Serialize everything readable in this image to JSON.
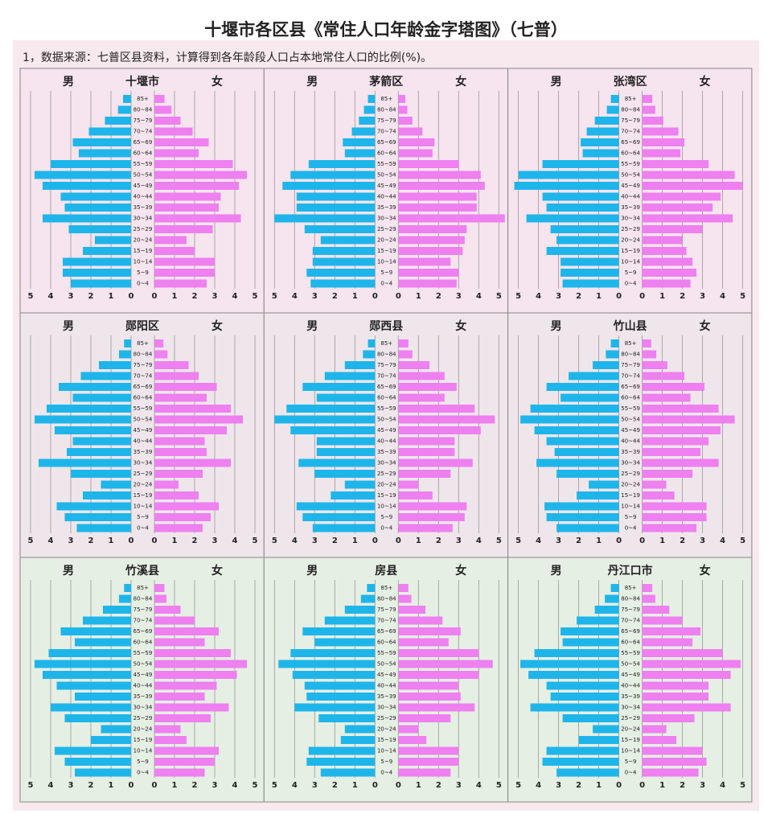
{
  "title": "十堰市各区县《常住人口年龄金字塔图》（七普）",
  "subtitle": "1，数据来源：七普区县资料，计算得到各年龄段人口占本地常住人口的比例(%)。",
  "chart_data": [
    {
      "type": "pyramid",
      "title": "十堰市",
      "categories": [
        "85+",
        "80~84",
        "75~79",
        "70~74",
        "65~69",
        "60~64",
        "55~59",
        "50~54",
        "45~49",
        "40~44",
        "35~39",
        "30~34",
        "25~29",
        "20~24",
        "15~19",
        "10~14",
        "5~9",
        "0~4"
      ],
      "series": [
        {
          "name": "男",
          "color": "#1eb6ea",
          "values": [
            0.4,
            0.65,
            1.3,
            2.1,
            2.9,
            2.6,
            4.0,
            4.8,
            4.4,
            3.5,
            3.3,
            4.4,
            3.1,
            1.8,
            2.4,
            3.4,
            3.4,
            3.0
          ]
        },
        {
          "name": "女",
          "color": "#ee80f0",
          "values": [
            0.5,
            0.85,
            1.3,
            1.9,
            2.7,
            2.2,
            3.9,
            4.6,
            4.2,
            3.3,
            3.2,
            4.3,
            2.9,
            1.6,
            2.0,
            3.0,
            3.0,
            2.6
          ]
        }
      ],
      "xlim": [
        0,
        5
      ],
      "xticks": [
        0,
        1,
        2,
        3,
        4,
        5
      ],
      "grid": true
    },
    {
      "type": "pyramid",
      "title": "茅箭区",
      "categories": [
        "85+",
        "80~84",
        "75~79",
        "70~74",
        "65~69",
        "60~64",
        "55~59",
        "50~54",
        "45~49",
        "40~44",
        "35~39",
        "30~34",
        "25~29",
        "20~24",
        "15~19",
        "10~14",
        "5~9",
        "0~4"
      ],
      "series": [
        {
          "name": "男",
          "color": "#1eb6ea",
          "values": [
            0.35,
            0.55,
            0.8,
            1.15,
            1.6,
            1.5,
            3.3,
            4.2,
            4.6,
            3.9,
            3.9,
            5.0,
            3.5,
            2.7,
            3.1,
            3.1,
            3.4,
            3.2
          ]
        },
        {
          "name": "女",
          "color": "#ee80f0",
          "values": [
            0.35,
            0.45,
            0.7,
            1.2,
            1.8,
            1.7,
            3.0,
            4.1,
            4.3,
            3.9,
            3.9,
            5.3,
            3.4,
            3.3,
            3.2,
            2.6,
            3.0,
            2.9
          ]
        }
      ],
      "xlim": [
        0,
        5
      ],
      "xticks": [
        0,
        1,
        2,
        3,
        4,
        5
      ],
      "grid": true
    },
    {
      "type": "pyramid",
      "title": "张湾区",
      "categories": [
        "85+",
        "80~84",
        "75~79",
        "70~74",
        "65~69",
        "60~64",
        "55~59",
        "50~54",
        "45~49",
        "40~44",
        "35~39",
        "30~34",
        "25~29",
        "20~24",
        "15~19",
        "10~14",
        "5~9",
        "0~4"
      ],
      "series": [
        {
          "name": "男",
          "color": "#1eb6ea",
          "values": [
            0.4,
            0.6,
            1.2,
            1.6,
            1.9,
            1.8,
            3.8,
            5.0,
            5.2,
            3.8,
            3.6,
            4.6,
            3.4,
            3.1,
            3.6,
            2.9,
            2.9,
            2.8
          ]
        },
        {
          "name": "女",
          "color": "#ee80f0",
          "values": [
            0.5,
            0.65,
            1.05,
            1.8,
            2.1,
            1.9,
            3.3,
            4.6,
            5.0,
            3.9,
            3.5,
            4.5,
            3.0,
            2.0,
            2.2,
            2.5,
            2.7,
            2.4
          ]
        }
      ],
      "xlim": [
        0,
        5
      ],
      "xticks": [
        0,
        1,
        2,
        3,
        4,
        5
      ],
      "grid": true
    },
    {
      "type": "pyramid",
      "title": "郧阳区",
      "categories": [
        "85+",
        "80~84",
        "75~79",
        "70~74",
        "65~69",
        "60~64",
        "55~59",
        "50~54",
        "45~49",
        "40~44",
        "35~39",
        "30~34",
        "25~29",
        "20~24",
        "15~19",
        "10~14",
        "5~9",
        "0~4"
      ],
      "series": [
        {
          "name": "男",
          "color": "#1eb6ea",
          "values": [
            0.35,
            0.6,
            1.6,
            2.5,
            3.6,
            2.9,
            4.2,
            4.8,
            3.8,
            2.9,
            3.2,
            4.6,
            3.0,
            1.5,
            2.4,
            3.7,
            3.3,
            2.7
          ]
        },
        {
          "name": "女",
          "color": "#ee80f0",
          "values": [
            0.45,
            0.65,
            1.7,
            2.2,
            3.1,
            2.6,
            3.8,
            4.4,
            3.6,
            2.5,
            2.6,
            3.8,
            2.4,
            1.2,
            2.2,
            3.2,
            2.8,
            2.4
          ]
        }
      ],
      "xlim": [
        0,
        5
      ],
      "xticks": [
        0,
        1,
        2,
        3,
        4,
        5
      ],
      "grid": true
    },
    {
      "type": "pyramid",
      "title": "郧西县",
      "categories": [
        "85+",
        "80~84",
        "75~79",
        "70~74",
        "65~69",
        "60~64",
        "55~59",
        "50~54",
        "45~49",
        "40~44",
        "35~39",
        "30~34",
        "25~29",
        "20~24",
        "15~19",
        "10~14",
        "5~9",
        "0~4"
      ],
      "series": [
        {
          "name": "男",
          "color": "#1eb6ea",
          "values": [
            0.35,
            0.6,
            1.5,
            2.5,
            3.6,
            2.9,
            4.4,
            5.0,
            4.2,
            2.9,
            2.9,
            3.8,
            3.0,
            1.5,
            2.2,
            3.9,
            3.6,
            3.1
          ]
        },
        {
          "name": "女",
          "color": "#ee80f0",
          "values": [
            0.5,
            0.7,
            1.55,
            2.3,
            2.9,
            2.3,
            3.8,
            4.8,
            4.1,
            2.8,
            2.8,
            3.7,
            2.6,
            1.0,
            1.7,
            3.4,
            3.3,
            2.7
          ]
        }
      ],
      "xlim": [
        0,
        5
      ],
      "xticks": [
        0,
        1,
        2,
        3,
        4,
        5
      ],
      "grid": true
    },
    {
      "type": "pyramid",
      "title": "竹山县",
      "categories": [
        "85+",
        "80~84",
        "75~79",
        "70~74",
        "65~69",
        "60~64",
        "55~59",
        "50~54",
        "45~49",
        "40~44",
        "35~39",
        "30~34",
        "25~29",
        "20~24",
        "15~19",
        "10~14",
        "5~9",
        "0~4"
      ],
      "series": [
        {
          "name": "男",
          "color": "#1eb6ea",
          "values": [
            0.4,
            0.65,
            1.3,
            2.5,
            3.6,
            2.9,
            4.4,
            4.9,
            4.2,
            3.6,
            3.2,
            4.1,
            3.1,
            1.5,
            2.1,
            3.7,
            3.6,
            3.1
          ]
        },
        {
          "name": "女",
          "color": "#ee80f0",
          "values": [
            0.45,
            0.7,
            1.25,
            2.1,
            3.1,
            2.4,
            3.8,
            4.6,
            3.9,
            3.3,
            2.9,
            3.8,
            2.5,
            1.2,
            1.6,
            3.2,
            3.2,
            2.7
          ]
        }
      ],
      "xlim": [
        0,
        5
      ],
      "xticks": [
        0,
        1,
        2,
        3,
        4,
        5
      ],
      "grid": true
    },
    {
      "type": "pyramid",
      "title": "竹溪县",
      "categories": [
        "85+",
        "80~84",
        "75~79",
        "70~74",
        "65~69",
        "60~64",
        "55~59",
        "50~54",
        "45~49",
        "40~44",
        "35~39",
        "30~34",
        "25~29",
        "20~24",
        "15~19",
        "10~14",
        "5~9",
        "0~4"
      ],
      "series": [
        {
          "name": "男",
          "color": "#1eb6ea",
          "values": [
            0.35,
            0.6,
            1.4,
            2.4,
            3.5,
            2.8,
            4.1,
            4.8,
            4.4,
            3.7,
            2.8,
            4.0,
            3.3,
            1.5,
            2.0,
            3.8,
            3.3,
            2.8
          ]
        },
        {
          "name": "女",
          "color": "#ee80f0",
          "values": [
            0.5,
            0.6,
            1.3,
            2.0,
            3.2,
            2.5,
            3.8,
            4.6,
            4.1,
            3.1,
            2.5,
            3.7,
            2.8,
            1.3,
            1.6,
            3.2,
            3.0,
            2.5
          ]
        }
      ],
      "xlim": [
        0,
        5
      ],
      "xticks": [
        0,
        1,
        2,
        3,
        4,
        5
      ],
      "grid": true
    },
    {
      "type": "pyramid",
      "title": "房县",
      "categories": [
        "85+",
        "80~84",
        "75~79",
        "70~74",
        "65~69",
        "60~64",
        "55~59",
        "50~54",
        "45~49",
        "40~44",
        "35~39",
        "30~34",
        "25~29",
        "20~24",
        "15~19",
        "10~14",
        "5~9",
        "0~4"
      ],
      "series": [
        {
          "name": "男",
          "color": "#1eb6ea",
          "values": [
            0.4,
            0.7,
            1.5,
            2.5,
            3.6,
            3.0,
            4.2,
            4.8,
            4.1,
            3.5,
            3.4,
            4.0,
            2.8,
            1.5,
            1.7,
            3.3,
            3.4,
            2.7
          ]
        },
        {
          "name": "女",
          "color": "#ee80f0",
          "values": [
            0.5,
            0.65,
            1.35,
            2.2,
            3.1,
            2.5,
            4.0,
            4.7,
            4.0,
            3.0,
            3.1,
            3.8,
            2.6,
            1.0,
            1.4,
            3.0,
            3.0,
            2.6
          ]
        }
      ],
      "xlim": [
        0,
        5
      ],
      "xticks": [
        0,
        1,
        2,
        3,
        4,
        5
      ],
      "grid": true
    },
    {
      "type": "pyramid",
      "title": "丹江口市",
      "categories": [
        "85+",
        "80~84",
        "75~79",
        "70~74",
        "65~69",
        "60~64",
        "55~59",
        "50~54",
        "45~49",
        "40~44",
        "35~39",
        "30~34",
        "25~29",
        "20~24",
        "15~19",
        "10~14",
        "5~9",
        "0~4"
      ],
      "series": [
        {
          "name": "男",
          "color": "#1eb6ea",
          "values": [
            0.4,
            0.7,
            1.2,
            2.1,
            2.9,
            2.8,
            4.2,
            4.9,
            4.5,
            3.6,
            3.4,
            4.4,
            2.8,
            1.3,
            2.0,
            3.6,
            3.8,
            3.1
          ]
        },
        {
          "name": "女",
          "color": "#ee80f0",
          "values": [
            0.5,
            0.65,
            1.35,
            2.0,
            2.9,
            2.5,
            4.0,
            4.9,
            4.4,
            3.3,
            3.3,
            4.4,
            2.6,
            1.2,
            1.7,
            3.0,
            3.2,
            2.8
          ]
        }
      ],
      "xlim": [
        0,
        5
      ],
      "xticks": [
        0,
        1,
        2,
        3,
        4,
        5
      ],
      "grid": true
    }
  ]
}
